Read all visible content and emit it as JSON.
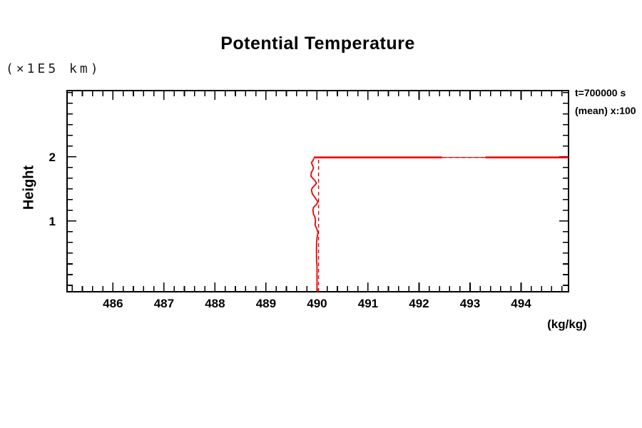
{
  "title": "Potential Temperature",
  "y_axis_unit": "(×1E5 km)",
  "y_axis_title": "Height",
  "x_axis_unit": "(kg/kg)",
  "annotation": {
    "line1": "t=700000 s",
    "line2": "(mean) x:100"
  },
  "colors": {
    "line": "#ee0000",
    "axis": "#000000",
    "background": "#ffffff"
  },
  "chart_data": {
    "type": "line",
    "title": "Potential Temperature",
    "xlabel": "(kg/kg)",
    "ylabel": "Height (×1E5 km)",
    "x_range": [
      485.1,
      494.93
    ],
    "y_range": [
      -0.1,
      3.03
    ],
    "x_major_ticks": [
      486,
      487,
      488,
      489,
      490,
      491,
      492,
      493,
      494
    ],
    "x_minor_step": 0.2,
    "y_major_ticks": [
      1,
      2
    ],
    "y_minor_step": 0.1667,
    "grid": false,
    "legend_position": "outside-top-right",
    "series": [
      {
        "name": "t=700000 s",
        "style": "solid",
        "color": "#ee0000",
        "points": [
          [
            489.94,
            1.98
          ],
          [
            489.92,
            1.94
          ],
          [
            489.89,
            1.91
          ],
          [
            489.91,
            1.87
          ],
          [
            489.93,
            1.83
          ],
          [
            489.92,
            1.8
          ],
          [
            489.89,
            1.76
          ],
          [
            489.88,
            1.7
          ],
          [
            489.91,
            1.67
          ],
          [
            489.96,
            1.63
          ],
          [
            489.99,
            1.59
          ],
          [
            489.96,
            1.56
          ],
          [
            489.91,
            1.52
          ],
          [
            489.89,
            1.48
          ],
          [
            489.91,
            1.42
          ],
          [
            489.94,
            1.39
          ],
          [
            489.99,
            1.33
          ],
          [
            490.02,
            1.3
          ],
          [
            489.99,
            1.26
          ],
          [
            489.93,
            1.21
          ],
          [
            489.92,
            1.17
          ],
          [
            489.93,
            1.11
          ],
          [
            489.96,
            1.06
          ],
          [
            489.97,
            1.0
          ],
          [
            489.96,
            0.94
          ],
          [
            489.99,
            0.89
          ],
          [
            490.02,
            0.82
          ],
          [
            490.0,
            0.74
          ],
          [
            489.99,
            0.63
          ],
          [
            489.99,
            0.52
          ],
          [
            489.99,
            0.41
          ],
          [
            490.0,
            0.3
          ],
          [
            490.0,
            0.19
          ],
          [
            490.0,
            0.08
          ],
          [
            490.0,
            -0.03
          ],
          [
            490.01,
            -0.1
          ]
        ],
        "top_line": {
          "height": 1.99,
          "x_from": 489.94,
          "x_to": 494.93,
          "thin_from": 492.45,
          "thin_to": 493.3
        }
      },
      {
        "name": "(mean)",
        "style": "dashed",
        "color": "#dd0000",
        "points": [
          [
            490.03,
            -0.1
          ],
          [
            490.03,
            1.96
          ],
          [
            490.1,
            1.99
          ],
          [
            494.93,
            1.99
          ]
        ]
      }
    ]
  }
}
